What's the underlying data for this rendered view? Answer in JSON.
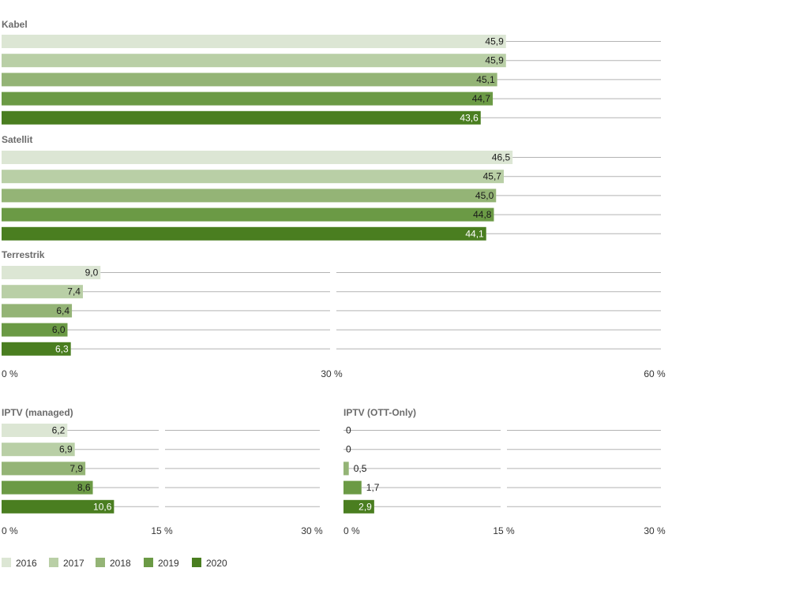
{
  "chart_data": [
    {
      "type": "bar",
      "orientation": "horizontal",
      "groups": [
        {
          "label": "Kabel",
          "values": [
            45.9,
            45.9,
            45.1,
            44.7,
            43.6
          ],
          "value_labels": [
            "45,9",
            "45,9",
            "45,1",
            "44,7",
            "43,6"
          ]
        },
        {
          "label": "Satellit",
          "values": [
            46.5,
            45.7,
            45.0,
            44.8,
            44.1
          ],
          "value_labels": [
            "46,5",
            "45,7",
            "45,0",
            "44,8",
            "44,1"
          ]
        },
        {
          "label": "Terrestrik",
          "values": [
            9.0,
            7.4,
            6.4,
            6.0,
            6.3
          ],
          "value_labels": [
            "9,0",
            "7,4",
            "6,4",
            "6,0",
            "6,3"
          ]
        }
      ],
      "xlim": [
        0,
        60
      ],
      "tick_labels": [
        "0 %",
        "30 %",
        "60 %"
      ],
      "grid": true
    },
    {
      "type": "bar",
      "orientation": "horizontal",
      "groups": [
        {
          "label": "IPTV (managed)",
          "values": [
            6.2,
            6.9,
            7.9,
            8.6,
            10.6
          ],
          "value_labels": [
            "6,2",
            "6,9",
            "7,9",
            "8,6",
            "10,6"
          ]
        }
      ],
      "xlim": [
        0,
        30
      ],
      "tick_labels": [
        "0 %",
        "15 %",
        "30 %"
      ],
      "grid": true
    },
    {
      "type": "bar",
      "orientation": "horizontal",
      "groups": [
        {
          "label": "IPTV (OTT-Only)",
          "values": [
            0,
            0,
            0.5,
            1.7,
            2.9
          ],
          "value_labels": [
            "0",
            "0",
            "0,5",
            "1,7",
            "2,9"
          ]
        }
      ],
      "xlim": [
        0,
        30
      ],
      "tick_labels": [
        "0 %",
        "15 %",
        "30 %"
      ],
      "grid": true
    }
  ],
  "legend": {
    "position": "bottom-left",
    "entries": [
      "2016",
      "2017",
      "2018",
      "2019",
      "2020"
    ]
  },
  "colors": {
    "series": [
      "#dce6d4",
      "#b9cfa6",
      "#94b476",
      "#6b9a45",
      "#4a7e20"
    ],
    "grid": "#b3b3b3",
    "group_label": "#6b6b6b",
    "text": "#333333"
  }
}
